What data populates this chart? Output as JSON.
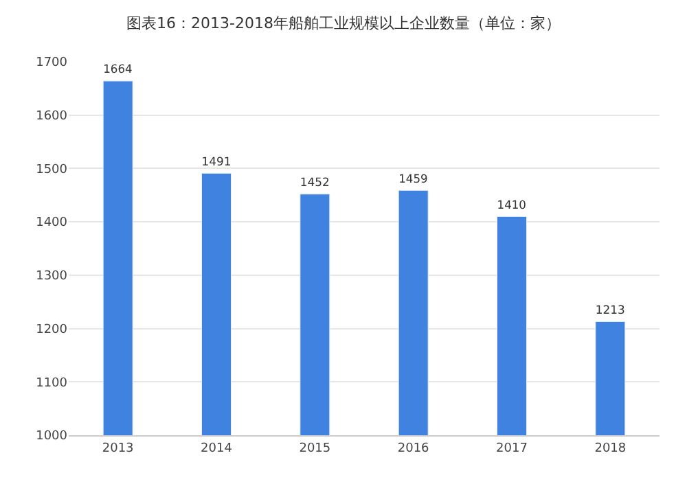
{
  "chart_data": {
    "type": "bar",
    "title": "图表16：2013-2018年船舶工业规模以上企业数量（单位：家）",
    "categories": [
      "2013",
      "2014",
      "2015",
      "2016",
      "2017",
      "2018"
    ],
    "values": [
      1664,
      1491,
      1452,
      1459,
      1410,
      1213
    ],
    "color": "#3f82e0",
    "ylim": [
      1000,
      1700
    ],
    "yticks": [
      1000,
      1100,
      1200,
      1300,
      1400,
      1500,
      1600,
      1700
    ],
    "grid": "y",
    "data_labels": true
  }
}
